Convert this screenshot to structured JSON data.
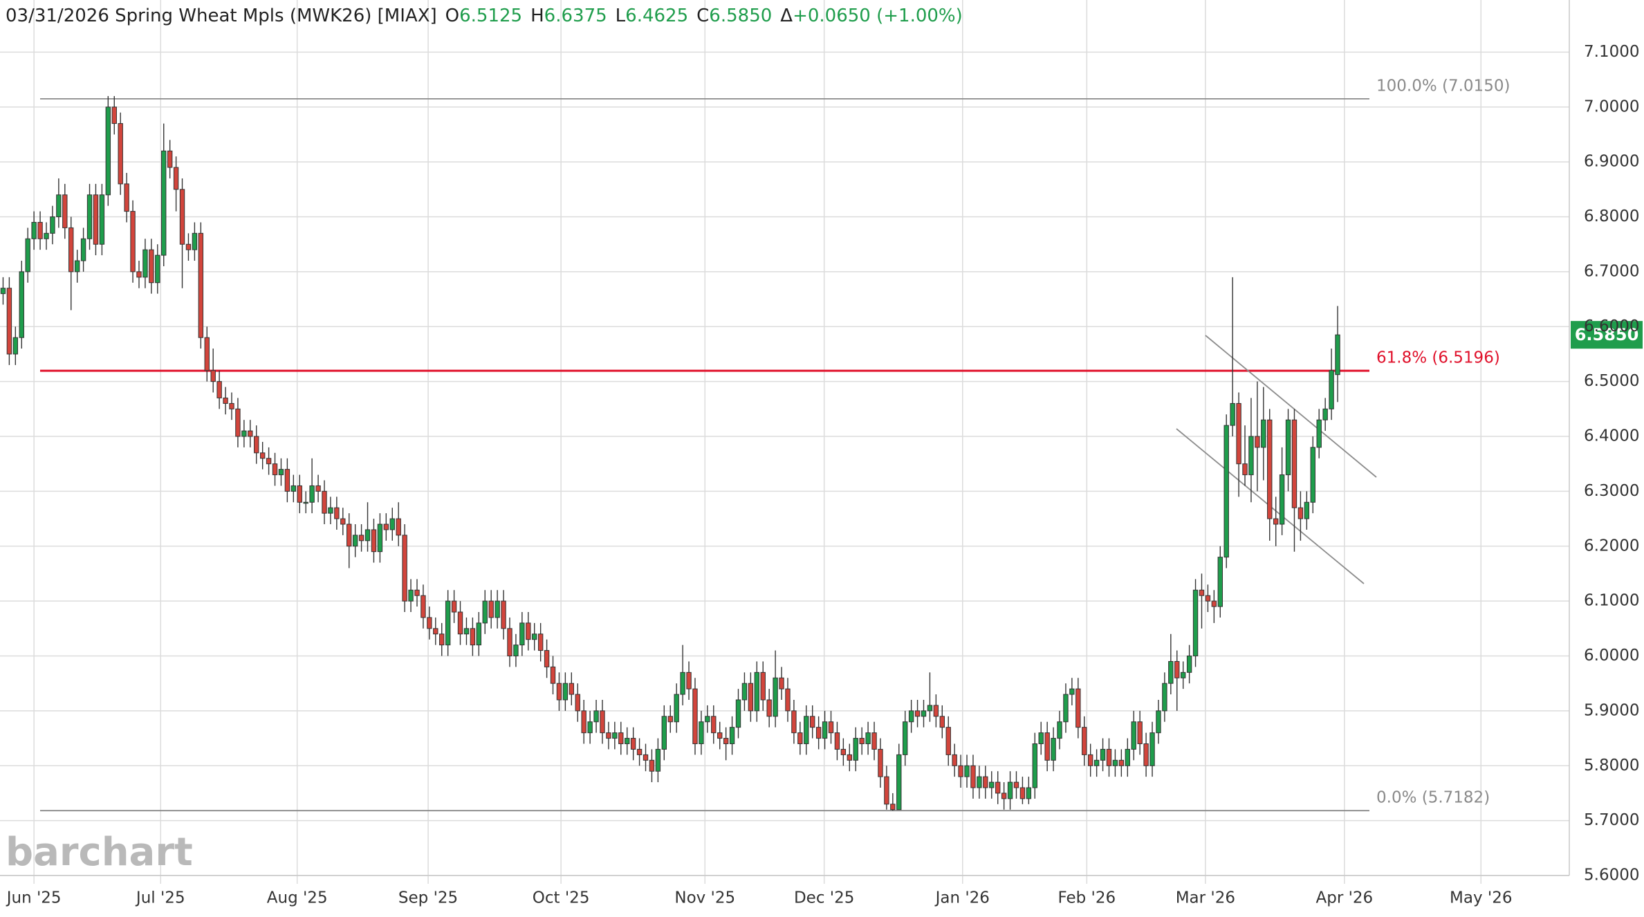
{
  "chart_data": {
    "type": "candlestick",
    "title": "03/31/2026 Spring Wheat Mpls (MWK26) [MIAX]",
    "fields": [
      {
        "key": "O",
        "value": "6.5125"
      },
      {
        "key": "H",
        "value": "6.6375"
      },
      {
        "key": "L",
        "value": "6.4625"
      },
      {
        "key": "C",
        "value": "6.5850"
      },
      {
        "key": "Δ",
        "value": "+0.0650 (+1.00%)"
      }
    ],
    "watermark": "barchart",
    "up_color": "#1f9d4c",
    "down_color": "#d2453c",
    "grid": true,
    "xlim": [
      -0.5,
      253.5
    ],
    "xticks": [
      {
        "value": 5,
        "label": "Jun '25"
      },
      {
        "value": 25.5,
        "label": "Jul '25"
      },
      {
        "value": 47.6,
        "label": "Aug '25"
      },
      {
        "value": 68.8,
        "label": "Sep '25"
      },
      {
        "value": 90.3,
        "label": "Oct '25"
      },
      {
        "value": 113.6,
        "label": "Nov '25"
      },
      {
        "value": 132.9,
        "label": "Dec '25"
      },
      {
        "value": 155.3,
        "label": "Jan '26"
      },
      {
        "value": 175.4,
        "label": "Feb '26"
      },
      {
        "value": 194.6,
        "label": "Mar '26"
      },
      {
        "value": 217.1,
        "label": "Apr '26"
      },
      {
        "value": 239.2,
        "label": "May '26"
      }
    ],
    "ylim": [
      5.6,
      7.195
    ],
    "yticks": [
      {
        "value": 5.6,
        "label": "5.6000"
      },
      {
        "value": 5.7,
        "label": "5.7000"
      },
      {
        "value": 5.8,
        "label": "5.8000"
      },
      {
        "value": 5.9,
        "label": "5.9000"
      },
      {
        "value": 6.0,
        "label": "6.0000"
      },
      {
        "value": 6.1,
        "label": "6.1000"
      },
      {
        "value": 6.2,
        "label": "6.2000"
      },
      {
        "value": 6.3,
        "label": "6.3000"
      },
      {
        "value": 6.4,
        "label": "6.4000"
      },
      {
        "value": 6.5,
        "label": "6.5000"
      },
      {
        "value": 6.6,
        "label": "6.6000"
      },
      {
        "value": 6.7,
        "label": "6.7000"
      },
      {
        "value": 6.8,
        "label": "6.8000"
      },
      {
        "value": 6.9,
        "label": "6.9000"
      },
      {
        "value": 7.0,
        "label": "7.0000"
      },
      {
        "value": 7.1,
        "label": "7.1000"
      }
    ],
    "levels": [
      {
        "value": 7.015,
        "label": "100.0% (7.0150)",
        "color": "#8a8a8a"
      },
      {
        "value": 6.5196,
        "label": "61.8% (6.5196)",
        "color": "#e0112b"
      },
      {
        "value": 5.7182,
        "label": "0.0% (5.7182)",
        "color": "#8a8a8a"
      }
    ],
    "last_price": {
      "value": 6.585,
      "label": "6.5850",
      "color": "#1f9d4c"
    },
    "open": [
      6.66,
      6.67,
      6.55,
      6.58,
      6.7,
      6.76,
      6.79,
      6.76,
      6.77,
      6.8,
      6.84,
      6.78,
      6.7,
      6.72,
      6.76,
      6.84,
      6.75,
      6.84,
      7.0,
      6.97,
      6.86,
      6.81,
      6.7,
      6.69,
      6.74,
      6.68,
      6.73,
      6.92,
      6.89,
      6.85,
      6.75,
      6.74,
      6.77,
      6.58,
      6.52,
      6.5,
      6.47,
      6.46,
      6.45,
      6.4,
      6.41,
      6.4,
      6.37,
      6.36,
      6.35,
      6.33,
      6.34,
      6.3,
      6.31,
      6.28,
      6.28,
      6.31,
      6.3,
      6.26,
      6.27,
      6.25,
      6.24,
      6.2,
      6.22,
      6.21,
      6.23,
      6.19,
      6.24,
      6.23,
      6.25,
      6.22,
      6.1,
      6.12,
      6.11,
      6.07,
      6.05,
      6.04,
      6.02,
      6.1,
      6.08,
      6.04,
      6.05,
      6.02,
      6.06,
      6.1,
      6.07,
      6.1,
      6.05,
      6.0,
      6.02,
      6.06,
      6.03,
      6.04,
      6.01,
      5.98,
      5.95,
      5.92,
      5.95,
      5.93,
      5.9,
      5.86,
      5.88,
      5.9,
      5.86,
      5.85,
      5.86,
      5.84,
      5.85,
      5.83,
      5.82,
      5.81,
      5.79,
      5.83,
      5.89,
      5.88,
      5.93,
      5.97,
      5.94,
      5.84,
      5.88,
      5.89,
      5.86,
      5.85,
      5.84,
      5.87,
      5.92,
      5.95,
      5.9,
      5.97,
      5.92,
      5.89,
      5.96,
      5.94,
      5.9,
      5.86,
      5.84,
      5.89,
      5.87,
      5.85,
      5.88,
      5.86,
      5.83,
      5.82,
      5.81,
      5.85,
      5.84,
      5.86,
      5.83,
      5.78,
      5.73,
      5.72,
      5.82,
      5.88,
      5.9,
      5.89,
      5.9,
      5.91,
      5.89,
      5.87,
      5.82,
      5.8,
      5.78,
      5.8,
      5.76,
      5.78,
      5.76,
      5.77,
      5.75,
      5.74,
      5.77,
      5.76,
      5.74,
      5.76,
      5.84,
      5.86,
      5.81,
      5.85,
      5.88,
      5.93,
      5.94,
      5.87,
      5.82,
      5.8,
      5.81,
      5.83,
      5.8,
      5.81,
      5.8,
      5.83,
      5.88,
      5.84,
      5.8,
      5.86,
      5.9,
      5.95,
      5.99,
      5.96,
      5.97,
      6.0,
      6.12,
      6.11,
      6.1,
      6.09,
      6.18,
      6.42,
      6.46,
      6.35,
      6.33,
      6.4,
      6.38,
      6.43,
      6.25,
      6.24,
      6.33,
      6.43,
      6.27,
      6.25,
      6.28,
      6.38,
      6.43,
      6.45,
      6.5125
    ],
    "high": [
      6.69,
      6.69,
      6.6,
      6.72,
      6.78,
      6.81,
      6.81,
      6.79,
      6.82,
      6.87,
      6.86,
      6.8,
      6.74,
      6.78,
      6.86,
      6.86,
      6.86,
      7.02,
      7.02,
      6.99,
      6.88,
      6.83,
      6.72,
      6.76,
      6.76,
      6.75,
      6.97,
      6.94,
      6.91,
      6.87,
      6.77,
      6.79,
      6.79,
      6.6,
      6.56,
      6.52,
      6.49,
      6.48,
      6.47,
      6.43,
      6.43,
      6.42,
      6.39,
      6.38,
      6.37,
      6.36,
      6.36,
      6.33,
      6.33,
      6.3,
      6.36,
      6.33,
      6.32,
      6.29,
      6.29,
      6.27,
      6.26,
      6.24,
      6.24,
      6.28,
      6.25,
      6.26,
      6.26,
      6.27,
      6.28,
      6.24,
      6.14,
      6.14,
      6.13,
      6.09,
      6.07,
      6.06,
      6.12,
      6.12,
      6.1,
      6.07,
      6.07,
      6.08,
      6.12,
      6.12,
      6.12,
      6.12,
      6.07,
      6.04,
      6.08,
      6.08,
      6.06,
      6.06,
      6.03,
      6.0,
      5.97,
      5.97,
      5.97,
      5.95,
      5.92,
      5.9,
      5.92,
      5.92,
      5.88,
      5.88,
      5.88,
      5.87,
      5.87,
      5.85,
      5.84,
      5.83,
      5.85,
      5.91,
      5.91,
      5.95,
      6.02,
      5.99,
      5.96,
      5.9,
      5.91,
      5.91,
      5.88,
      5.87,
      5.89,
      5.94,
      5.97,
      5.97,
      5.99,
      5.99,
      5.94,
      6.01,
      5.98,
      5.96,
      5.92,
      5.88,
      5.91,
      5.91,
      5.89,
      5.9,
      5.9,
      5.88,
      5.85,
      5.84,
      5.87,
      5.87,
      5.88,
      5.88,
      5.85,
      5.8,
      5.75,
      5.84,
      5.9,
      5.92,
      5.92,
      5.92,
      5.97,
      5.93,
      5.91,
      5.89,
      5.84,
      5.82,
      5.82,
      5.82,
      5.8,
      5.8,
      5.79,
      5.79,
      5.77,
      5.79,
      5.79,
      5.78,
      5.78,
      5.86,
      5.88,
      5.88,
      5.87,
      5.9,
      5.95,
      5.96,
      5.96,
      5.89,
      5.84,
      5.83,
      5.85,
      5.85,
      5.83,
      5.83,
      5.85,
      5.9,
      5.9,
      5.86,
      5.88,
      5.92,
      5.97,
      6.04,
      6.01,
      5.99,
      6.02,
      6.14,
      6.15,
      6.13,
      6.12,
      6.2,
      6.44,
      6.69,
      6.48,
      6.42,
      6.47,
      6.5,
      6.49,
      6.45,
      6.29,
      6.38,
      6.45,
      6.45,
      6.3,
      6.3,
      6.4,
      6.45,
      6.47,
      6.56,
      6.6375
    ],
    "low": [
      6.64,
      6.53,
      6.53,
      6.56,
      6.68,
      6.74,
      6.74,
      6.74,
      6.75,
      6.78,
      6.76,
      6.63,
      6.68,
      6.7,
      6.74,
      6.73,
      6.73,
      6.82,
      6.95,
      6.84,
      6.79,
      6.68,
      6.67,
      6.67,
      6.66,
      6.66,
      6.71,
      6.87,
      6.81,
      6.67,
      6.72,
      6.72,
      6.56,
      6.5,
      6.48,
      6.45,
      6.44,
      6.43,
      6.38,
      6.38,
      6.38,
      6.35,
      6.34,
      6.33,
      6.31,
      6.31,
      6.28,
      6.28,
      6.26,
      6.26,
      6.26,
      6.28,
      6.24,
      6.24,
      6.23,
      6.22,
      6.16,
      6.18,
      6.19,
      6.19,
      6.17,
      6.17,
      6.21,
      6.21,
      6.2,
      6.08,
      6.08,
      6.09,
      6.05,
      6.03,
      6.02,
      6.0,
      6.0,
      6.06,
      6.02,
      6.02,
      6.0,
      6.0,
      6.04,
      6.05,
      6.05,
      6.03,
      5.98,
      5.98,
      6.0,
      6.01,
      6.01,
      5.99,
      5.96,
      5.93,
      5.9,
      5.9,
      5.91,
      5.88,
      5.84,
      5.84,
      5.86,
      5.84,
      5.83,
      5.83,
      5.82,
      5.82,
      5.81,
      5.8,
      5.79,
      5.77,
      5.77,
      5.81,
      5.86,
      5.86,
      5.91,
      5.92,
      5.82,
      5.82,
      5.86,
      5.84,
      5.83,
      5.81,
      5.82,
      5.85,
      5.9,
      5.88,
      5.88,
      5.9,
      5.87,
      5.87,
      5.92,
      5.88,
      5.84,
      5.82,
      5.82,
      5.85,
      5.83,
      5.83,
      5.84,
      5.81,
      5.8,
      5.79,
      5.79,
      5.82,
      5.82,
      5.81,
      5.76,
      5.72,
      5.7182,
      5.72,
      5.8,
      5.86,
      5.87,
      5.87,
      5.88,
      5.87,
      5.85,
      5.8,
      5.78,
      5.76,
      5.76,
      5.74,
      5.74,
      5.74,
      5.74,
      5.73,
      5.72,
      5.72,
      5.74,
      5.73,
      5.73,
      5.74,
      5.82,
      5.79,
      5.79,
      5.83,
      5.86,
      5.91,
      5.85,
      5.8,
      5.78,
      5.78,
      5.79,
      5.78,
      5.78,
      5.78,
      5.78,
      5.81,
      5.82,
      5.78,
      5.78,
      5.84,
      5.88,
      5.93,
      5.9,
      5.94,
      5.95,
      5.98,
      6.05,
      6.08,
      6.06,
      6.07,
      6.16,
      6.4,
      6.29,
      6.31,
      6.28,
      6.3,
      6.32,
      6.21,
      6.2,
      6.22,
      6.3,
      6.19,
      6.21,
      6.23,
      6.26,
      6.36,
      6.41,
      6.43,
      6.4625
    ],
    "close": [
      6.67,
      6.55,
      6.58,
      6.7,
      6.76,
      6.79,
      6.76,
      6.77,
      6.8,
      6.84,
      6.78,
      6.7,
      6.72,
      6.76,
      6.84,
      6.75,
      6.84,
      7.0,
      6.97,
      6.86,
      6.81,
      6.7,
      6.69,
      6.74,
      6.68,
      6.73,
      6.92,
      6.89,
      6.85,
      6.75,
      6.74,
      6.77,
      6.58,
      6.52,
      6.5,
      6.47,
      6.46,
      6.45,
      6.4,
      6.41,
      6.4,
      6.37,
      6.36,
      6.35,
      6.33,
      6.34,
      6.3,
      6.31,
      6.28,
      6.28,
      6.31,
      6.3,
      6.26,
      6.27,
      6.25,
      6.24,
      6.2,
      6.22,
      6.21,
      6.23,
      6.19,
      6.24,
      6.23,
      6.25,
      6.22,
      6.1,
      6.12,
      6.11,
      6.07,
      6.05,
      6.04,
      6.02,
      6.1,
      6.08,
      6.04,
      6.05,
      6.02,
      6.06,
      6.1,
      6.07,
      6.1,
      6.05,
      6.0,
      6.02,
      6.06,
      6.03,
      6.04,
      6.01,
      5.98,
      5.95,
      5.92,
      5.95,
      5.93,
      5.9,
      5.86,
      5.88,
      5.9,
      5.86,
      5.85,
      5.86,
      5.84,
      5.85,
      5.83,
      5.82,
      5.81,
      5.79,
      5.83,
      5.89,
      5.88,
      5.93,
      5.97,
      5.94,
      5.84,
      5.88,
      5.89,
      5.86,
      5.85,
      5.84,
      5.87,
      5.92,
      5.95,
      5.9,
      5.97,
      5.92,
      5.89,
      5.96,
      5.94,
      5.9,
      5.86,
      5.84,
      5.89,
      5.87,
      5.85,
      5.88,
      5.86,
      5.83,
      5.82,
      5.81,
      5.85,
      5.84,
      5.86,
      5.83,
      5.78,
      5.73,
      5.72,
      5.82,
      5.88,
      5.9,
      5.89,
      5.9,
      5.91,
      5.89,
      5.87,
      5.82,
      5.8,
      5.78,
      5.8,
      5.76,
      5.78,
      5.76,
      5.77,
      5.75,
      5.74,
      5.77,
      5.76,
      5.74,
      5.76,
      5.84,
      5.86,
      5.81,
      5.85,
      5.88,
      5.93,
      5.94,
      5.87,
      5.82,
      5.8,
      5.81,
      5.83,
      5.8,
      5.81,
      5.8,
      5.83,
      5.88,
      5.84,
      5.8,
      5.86,
      5.9,
      5.95,
      5.99,
      5.96,
      5.97,
      6.0,
      6.12,
      6.11,
      6.1,
      6.09,
      6.18,
      6.42,
      6.46,
      6.35,
      6.33,
      6.4,
      6.38,
      6.43,
      6.25,
      6.24,
      6.33,
      6.43,
      6.27,
      6.25,
      6.28,
      6.38,
      6.43,
      6.45,
      6.52,
      6.585
    ]
  }
}
